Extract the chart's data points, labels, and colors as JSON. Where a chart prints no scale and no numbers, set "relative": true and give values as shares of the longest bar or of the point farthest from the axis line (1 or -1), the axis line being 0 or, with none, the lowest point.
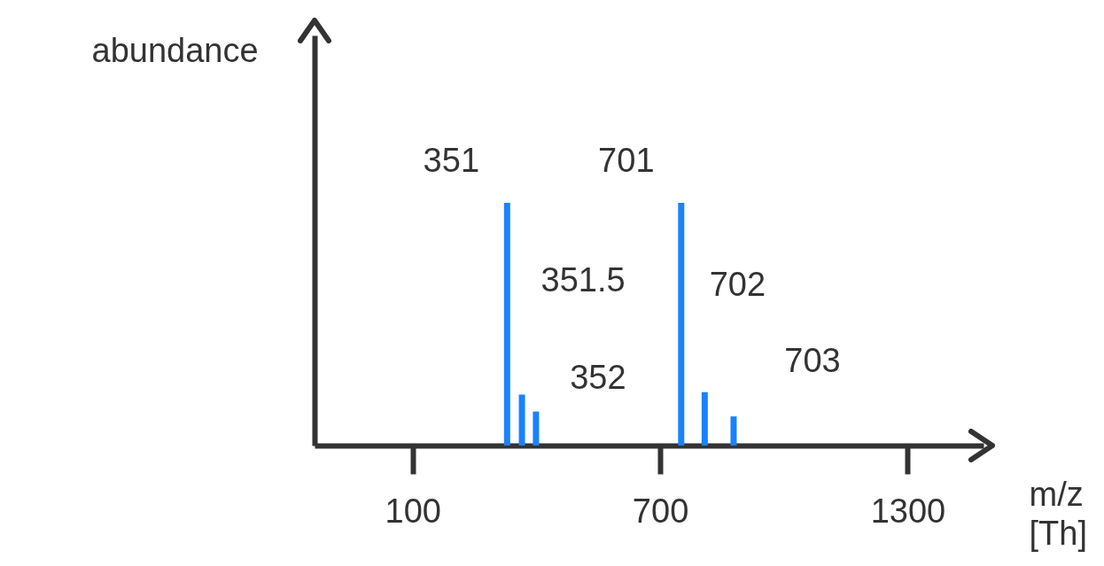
{
  "chart_data": {
    "type": "bar",
    "relative": true,
    "xlabel": "m/z [Th]",
    "ylabel": "abundance",
    "x": [
      329,
      365,
      399,
      751,
      808,
      878
    ],
    "values": [
      1,
      0.21,
      0.14,
      1,
      0.22,
      0.12
    ],
    "color": "#1a82ff",
    "xlim": [
      -127,
      1473
    ],
    "xticks": [
      100,
      700,
      1300
    ],
    "annotations": [
      {
        "text": "351",
        "x": 329,
        "y": 1
      },
      {
        "text": "351.5",
        "x": 365,
        "y": 0.21
      },
      {
        "text": "352",
        "x": 399,
        "y": 0.14
      },
      {
        "text": "701",
        "x": 751,
        "y": 1
      },
      {
        "text": "702",
        "x": 808,
        "y": 0.22
      },
      {
        "text": "703",
        "x": 878,
        "y": 0.12
      }
    ]
  }
}
